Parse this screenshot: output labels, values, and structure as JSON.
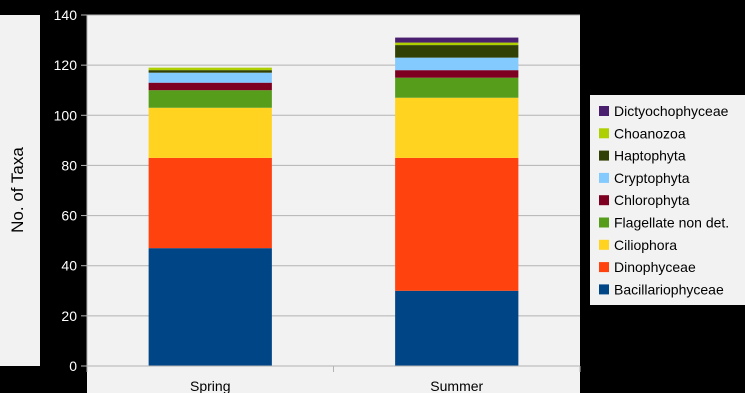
{
  "chart_data": {
    "type": "bar",
    "stacked": true,
    "title": "",
    "xlabel": "",
    "ylabel": "No. of Taxa",
    "ylim": [
      0,
      140
    ],
    "yticks": [
      0,
      20,
      40,
      60,
      80,
      100,
      120,
      140
    ],
    "grid": "horizontal",
    "legend_position": "right",
    "categories": [
      "Spring",
      "Summer"
    ],
    "series": [
      {
        "name": "Bacillariophyceae",
        "color": "#004586",
        "values": [
          47,
          30
        ]
      },
      {
        "name": "Dinophyceae",
        "color": "#ff420e",
        "values": [
          36,
          53
        ]
      },
      {
        "name": "Ciliophora",
        "color": "#ffd320",
        "values": [
          20,
          24
        ]
      },
      {
        "name": "Flagellate non det.",
        "color": "#579d1c",
        "values": [
          7,
          8
        ]
      },
      {
        "name": "Chlorophyta",
        "color": "#7e0021",
        "values": [
          3,
          3
        ]
      },
      {
        "name": "Cryptophyta",
        "color": "#83caff",
        "values": [
          4,
          5
        ]
      },
      {
        "name": "Haptophyta",
        "color": "#314004",
        "values": [
          1,
          5
        ]
      },
      {
        "name": "Choanozoa",
        "color": "#aecf00",
        "values": [
          1,
          1
        ]
      },
      {
        "name": "Dictyochophyceae",
        "color": "#4b1f6f",
        "values": [
          0,
          2
        ]
      }
    ]
  }
}
